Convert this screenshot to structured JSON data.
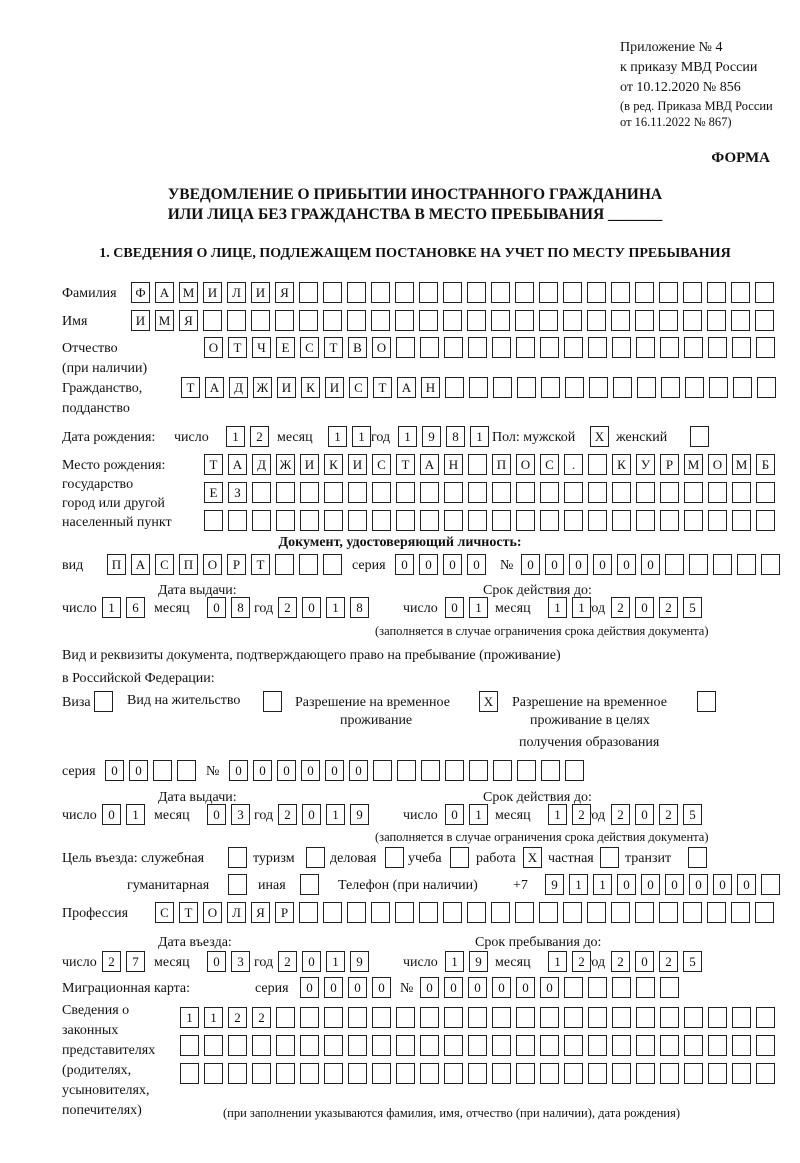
{
  "header": {
    "line1": "Приложение № 4",
    "line2": "к приказу МВД России",
    "line3": "от 10.12.2020 № 856",
    "line4": "(в ред. Приказа МВД России",
    "line5": "от 16.11.2022 № 867)"
  },
  "form_label": "ФОРМА",
  "title1": "УВЕДОМЛЕНИЕ О ПРИБЫТИИ ИНОСТРАННОГО ГРАЖДАНИНА",
  "title2": "ИЛИ ЛИЦА БЕЗ ГРАЖДАНСТВА В МЕСТО ПРЕБЫВАНИЯ _______",
  "section1": "1. СВЕДЕНИЯ О ЛИЦЕ, ПОДЛЕЖАЩЕМ ПОСТАНОВКЕ НА УЧЕТ ПО МЕСТУ ПРЕБЫВАНИЯ",
  "labels": {
    "surname": "Фамилия",
    "name": "Имя",
    "patronymic": "Отчество",
    "patronymic2": "(при наличии)",
    "citizenship": "Гражданство,",
    "citizenship2": "подданство",
    "dob": "Дата рождения:",
    "day": "число",
    "month": "месяц",
    "year": "год",
    "sex": "Пол: мужской",
    "female": "женский",
    "pob1": "Место рождения:",
    "pob2": "государство",
    "pob3": "город или другой",
    "pob4": "населенный пункт",
    "id_doc": "Документ, удостоверяющий личность:",
    "kind": "вид",
    "series": "серия",
    "number": "№",
    "issue_date": "Дата выдачи:",
    "valid_until": "Срок действия до:",
    "valid_note": "(заполняется в случае ограничения срока действия документа)",
    "right_doc1": "Вид и реквизиты документа, подтверждающего право на пребывание (проживание)",
    "right_doc2": "в Российской Федерации:",
    "visa": "Виза",
    "residence": "Вид на жительство",
    "trp1": "Разрешение на временное",
    "trp2": "проживание",
    "trpe1": "Разрешение на временное",
    "trpe2": "проживание в целях",
    "trpe3": "получения образования",
    "purpose": "Цель въезда: служебная",
    "tourism": "туризм",
    "business": "деловая",
    "study": "учеба",
    "work": "работа",
    "private": "частная",
    "transit": "транзит",
    "humanitarian": "гуманитарная",
    "other": "иная",
    "phone": "Телефон (при наличии)",
    "phone_prefix": "+7",
    "profession": "Профессия",
    "entry_date": "Дата въезда:",
    "stay_until": "Срок пребывания до:",
    "migration_card": "Миграционная карта:",
    "rep1": "Сведения о",
    "rep2": "законных",
    "rep3": "представителях",
    "rep4": "(родителях,",
    "rep5": "усыновителях,",
    "rep6": "попечителях)",
    "rep_note": "(при заполнении указываются фамилия, имя, отчество (при наличии), дата рождения)"
  },
  "values": {
    "surname": "ФАМИЛИЯ",
    "name": "ИМЯ",
    "patronymic": "ОТЧЕСТВО",
    "citizenship": "ТАДЖИКИСТАН",
    "dob_day": "12",
    "dob_month": "11",
    "dob_year": "1981",
    "sex_male": "X",
    "sex_female": "",
    "pob1": "ТАДЖИКИСТАН ПОС. КУРМОМБ",
    "pob2": "ЕЗ",
    "pob3": "",
    "doc_kind": "ПАСПОРТ",
    "doc_series": "0000",
    "doc_number": "000000",
    "doc_issue_day": "16",
    "doc_issue_month": "08",
    "doc_issue_year": "2018",
    "doc_valid_day": "01",
    "doc_valid_month": "11",
    "doc_valid_year": "2025",
    "visa": "",
    "residence": "",
    "trp": "X",
    "trpe": "",
    "rd_series": "00",
    "rd_number": "000000",
    "rd_issue_day": "01",
    "rd_issue_month": "03",
    "rd_issue_year": "2019",
    "rd_valid_day": "01",
    "rd_valid_month": "12",
    "rd_valid_year": "2025",
    "p_official": "",
    "p_tourism": "",
    "p_business": "",
    "p_study": "",
    "p_work": "X",
    "p_private": "",
    "p_transit": "",
    "p_humanitarian": "",
    "p_other": "",
    "phone": "911000000",
    "profession": "СТОЛЯР",
    "entry_day": "27",
    "entry_month": "03",
    "entry_year": "2019",
    "stay_day": "19",
    "stay_month": "12",
    "stay_year": "2025",
    "mc_series": "0000",
    "mc_number": "000000",
    "rep1": "1122",
    "rep2": "",
    "rep3": ""
  }
}
